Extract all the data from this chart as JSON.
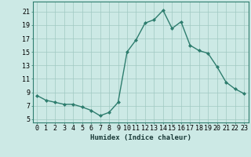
{
  "x": [
    0,
    1,
    2,
    3,
    4,
    5,
    6,
    7,
    8,
    9,
    10,
    11,
    12,
    13,
    14,
    15,
    16,
    17,
    18,
    19,
    20,
    21,
    22,
    23
  ],
  "y": [
    8.5,
    7.8,
    7.5,
    7.2,
    7.2,
    6.8,
    6.3,
    5.5,
    6.0,
    7.5,
    15.0,
    16.8,
    19.3,
    19.8,
    21.2,
    18.5,
    19.5,
    16.0,
    15.2,
    14.8,
    12.8,
    10.5,
    9.5,
    8.8
  ],
  "line_color": "#2e7d6e",
  "marker": "D",
  "marker_size": 2.0,
  "line_width": 1.0,
  "bg_color": "#cce9e5",
  "grid_color": "#a0c8c2",
  "xlabel": "Humidex (Indice chaleur)",
  "xlabel_fontsize": 6.5,
  "xtick_labels": [
    "0",
    "1",
    "2",
    "3",
    "4",
    "5",
    "6",
    "7",
    "8",
    "9",
    "10",
    "11",
    "12",
    "13",
    "14",
    "15",
    "16",
    "17",
    "18",
    "19",
    "20",
    "21",
    "22",
    "23"
  ],
  "ytick_values": [
    5,
    7,
    9,
    11,
    13,
    15,
    17,
    19,
    21
  ],
  "ylim": [
    4.5,
    22.5
  ],
  "xlim": [
    -0.5,
    23.5
  ],
  "tick_fontsize": 6.0
}
